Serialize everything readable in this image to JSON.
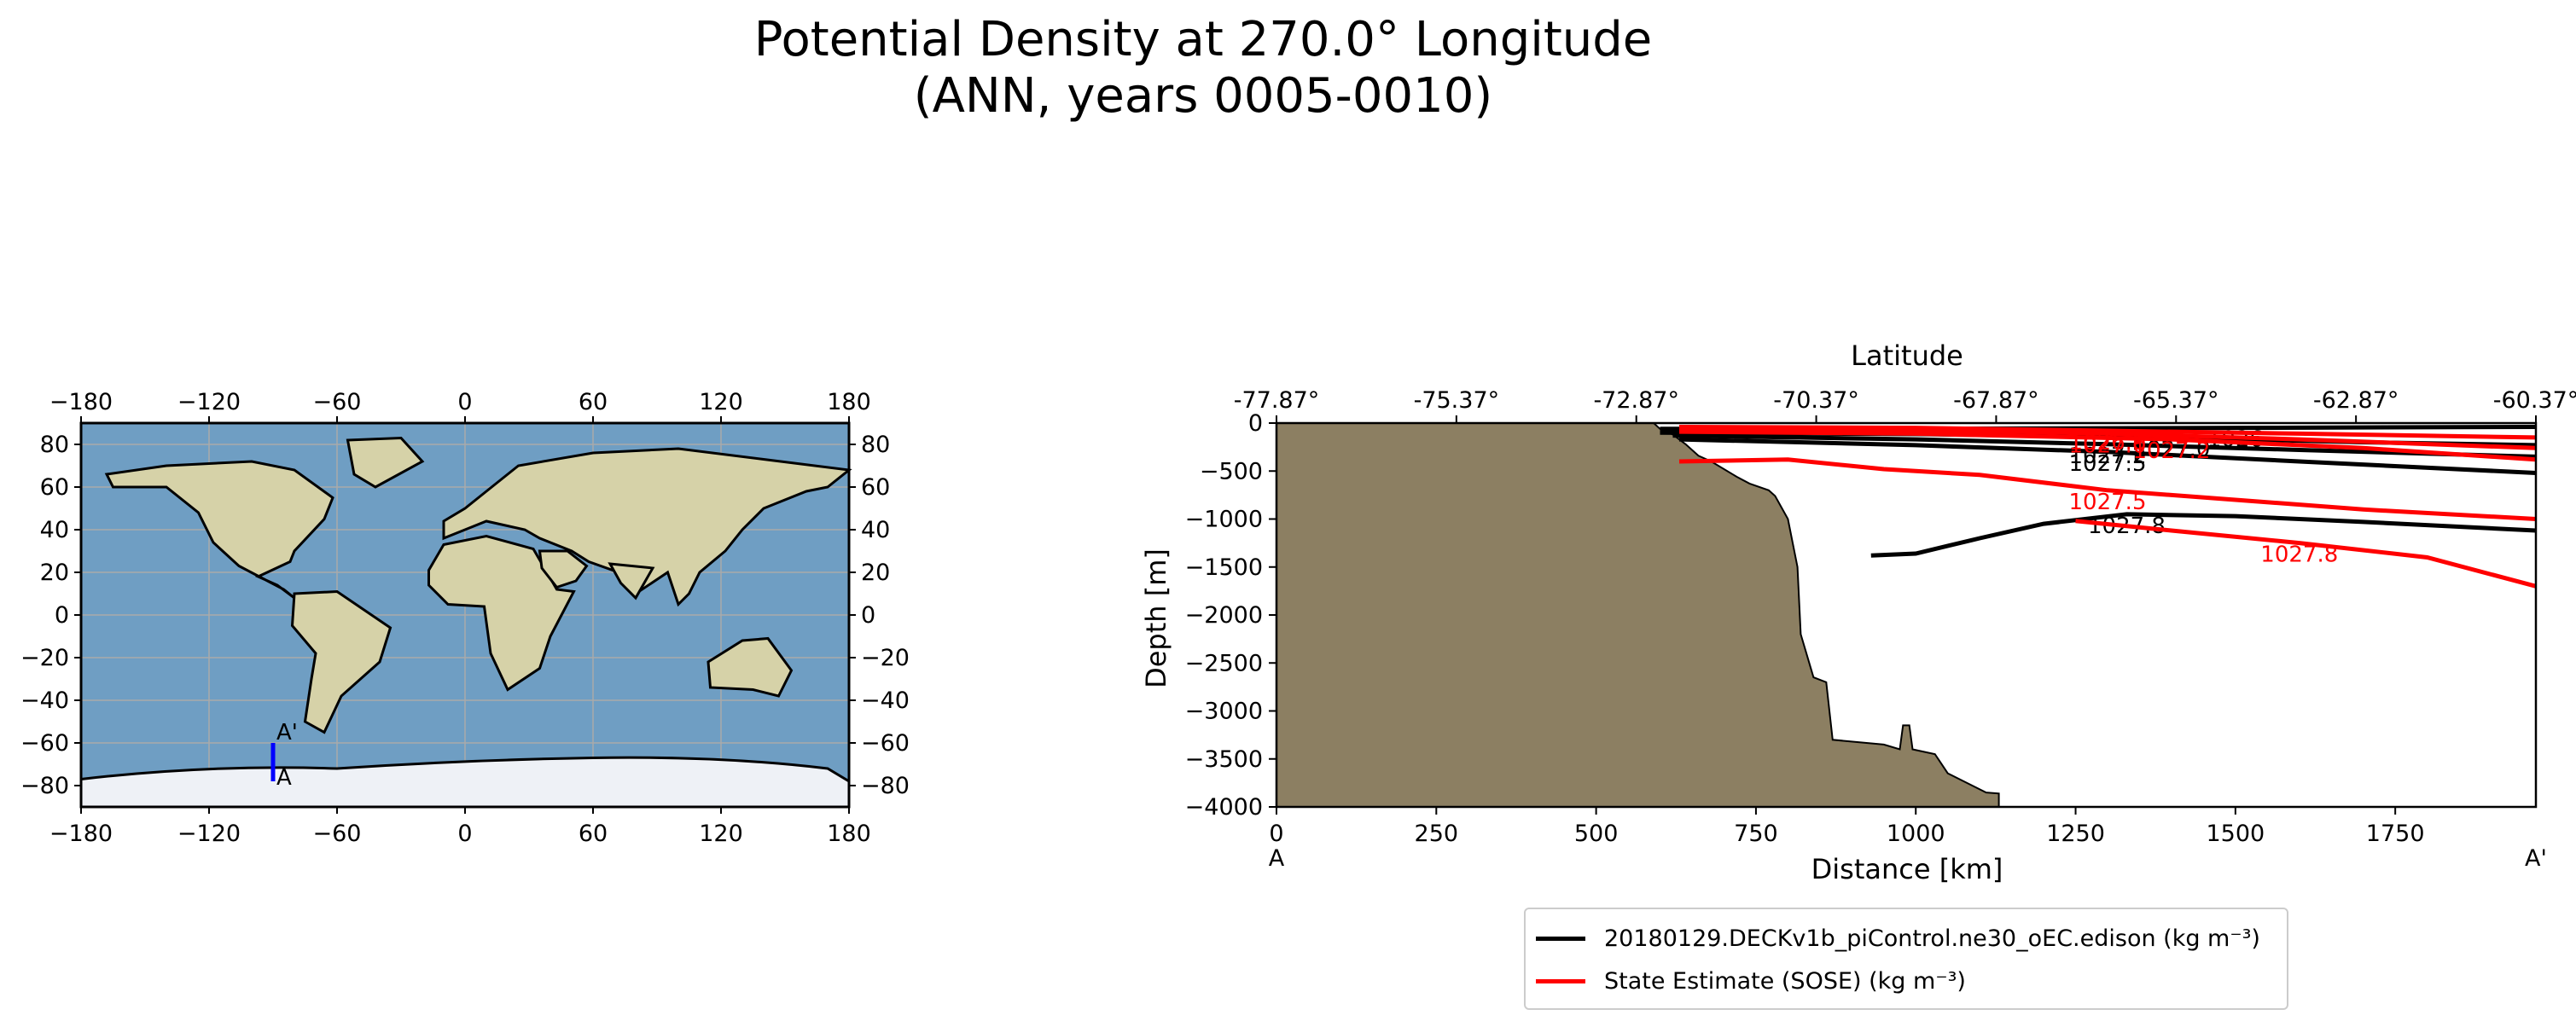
{
  "title": {
    "line1": "Potential Density at 270.0° Longitude",
    "line2": "(ANN, years 0005-0010)"
  },
  "map": {
    "lon_ticks": [
      -180,
      -120,
      -60,
      0,
      60,
      120,
      180
    ],
    "lat_ticks": [
      80,
      60,
      40,
      20,
      0,
      -20,
      -40,
      -60,
      -80
    ],
    "transect": {
      "lon": -90,
      "lat_start": -78,
      "lat_end": -60,
      "label_start": "A",
      "label_end": "A'"
    },
    "colors": {
      "ocean": "#6f9ec3",
      "land": "#d6d2a8",
      "ice": "#eef1f6",
      "transect": "#0000ff"
    }
  },
  "chart_data": {
    "type": "line",
    "xlabel": "Distance [km]",
    "ylabel": "Depth [m]",
    "top_axis_label": "Latitude",
    "xlim": [
      0,
      1970
    ],
    "ylim": [
      -4000,
      0
    ],
    "x_ticks": [
      0,
      250,
      500,
      750,
      1000,
      1250,
      1500,
      1750
    ],
    "y_ticks": [
      0,
      -500,
      -1000,
      -1500,
      -2000,
      -2500,
      -3000,
      -3500,
      -4000
    ],
    "top_ticks": [
      "-77.87°",
      "-75.37°",
      "-72.87°",
      "-70.37°",
      "-67.87°",
      "-65.37°",
      "-62.87°",
      "-60.37°"
    ],
    "start_label": "A",
    "end_label": "A'",
    "colors": {
      "model": "#000000",
      "obs": "#ff0000",
      "bathymetry": "#8c7f62"
    },
    "bathymetry": [
      [
        0,
        0
      ],
      [
        590,
        0
      ],
      [
        600,
        -60
      ],
      [
        620,
        -120
      ],
      [
        640,
        -220
      ],
      [
        660,
        -340
      ],
      [
        680,
        -400
      ],
      [
        700,
        -480
      ],
      [
        720,
        -560
      ],
      [
        740,
        -630
      ],
      [
        770,
        -700
      ],
      [
        780,
        -760
      ],
      [
        800,
        -1000
      ],
      [
        815,
        -1500
      ],
      [
        820,
        -2200
      ],
      [
        840,
        -2650
      ],
      [
        860,
        -2700
      ],
      [
        870,
        -3300
      ],
      [
        950,
        -3350
      ],
      [
        975,
        -3400
      ],
      [
        980,
        -3150
      ],
      [
        990,
        -3150
      ],
      [
        995,
        -3400
      ],
      [
        1030,
        -3450
      ],
      [
        1050,
        -3650
      ],
      [
        1080,
        -3750
      ],
      [
        1110,
        -3850
      ],
      [
        1130,
        -3860
      ],
      [
        1130,
        -4000
      ],
      [
        0,
        -4000
      ]
    ],
    "series": [
      {
        "name": "20180129.DECKv1b_piControl.ne30_oEC.edison (kg m⁻³)",
        "contours": [
          {
            "label": "1026",
            "points": [
              [
                600,
                -60
              ],
              [
                1000,
                -60
              ],
              [
                1500,
                -50
              ],
              [
                1970,
                -40
              ]
            ]
          },
          {
            "label": "1027.0",
            "points": [
              [
                600,
                -100
              ],
              [
                1000,
                -115
              ],
              [
                1400,
                -150
              ],
              [
                1700,
                -200
              ],
              [
                1970,
                -230
              ]
            ]
          },
          {
            "label": "1027.2",
            "points": [
              [
                620,
                -130
              ],
              [
                1000,
                -170
              ],
              [
                1300,
                -220
              ],
              [
                1600,
                -280
              ],
              [
                1970,
                -350
              ]
            ]
          },
          {
            "label": "1027.5",
            "points": [
              [
                630,
                -170
              ],
              [
                1000,
                -230
              ],
              [
                1300,
                -300
              ],
              [
                1600,
                -400
              ],
              [
                1970,
                -520
              ]
            ]
          },
          {
            "label": "1027.8",
            "points": [
              [
                930,
                -1380
              ],
              [
                1000,
                -1360
              ],
              [
                1100,
                -1200
              ],
              [
                1200,
                -1050
              ],
              [
                1330,
                -950
              ],
              [
                1500,
                -970
              ],
              [
                1700,
                -1030
              ],
              [
                1970,
                -1120
              ]
            ]
          }
        ]
      },
      {
        "name": "State Estimate (SOSE) (kg m⁻³)",
        "contours": [
          {
            "label": "1026.8",
            "points": [
              [
                630,
                -40
              ],
              [
                1000,
                -50
              ],
              [
                1300,
                -80
              ],
              [
                1600,
                -110
              ],
              [
                1970,
                -150
              ]
            ]
          },
          {
            "label": "1027.0",
            "points": [
              [
                630,
                -60
              ],
              [
                1000,
                -70
              ],
              [
                1300,
                -110
              ],
              [
                1600,
                -170
              ],
              [
                1970,
                -260
              ]
            ]
          },
          {
            "label": "1027.2",
            "points": [
              [
                630,
                -90
              ],
              [
                1000,
                -110
              ],
              [
                1400,
                -170
              ],
              [
                1700,
                -260
              ],
              [
                1970,
                -380
              ]
            ]
          },
          {
            "label": "1027.5",
            "points": [
              [
                630,
                -400
              ],
              [
                800,
                -380
              ],
              [
                950,
                -480
              ],
              [
                1100,
                -540
              ],
              [
                1300,
                -700
              ],
              [
                1500,
                -800
              ],
              [
                1700,
                -900
              ],
              [
                1970,
                -1000
              ]
            ]
          },
          {
            "label": "1027.8",
            "points": [
              [
                1250,
                -1020
              ],
              [
                1400,
                -1120
              ],
              [
                1600,
                -1250
              ],
              [
                1800,
                -1400
              ],
              [
                1970,
                -1700
              ]
            ]
          }
        ]
      }
    ]
  },
  "legend": {
    "model_label": "20180129.DECKv1b_piControl.ne30_oEC.edison (kg m⁻³)",
    "obs_label": "State Estimate (SOSE) (kg m⁻³)"
  }
}
